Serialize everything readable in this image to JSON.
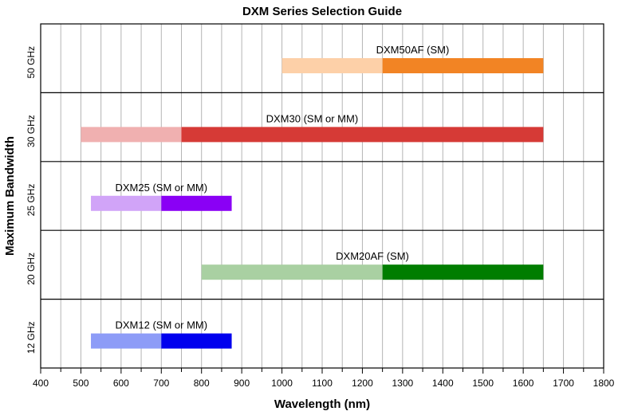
{
  "chart_data": {
    "type": "bar",
    "orientation": "horizontal-range",
    "title": "DXM Series Selection Guide",
    "xlabel": "Wavelength (nm)",
    "ylabel": "Maximum Bandwidth",
    "xlim": [
      400,
      1800
    ],
    "x_ticks": [
      400,
      500,
      600,
      700,
      800,
      900,
      1000,
      1100,
      1200,
      1300,
      1400,
      1500,
      1600,
      1700,
      1800
    ],
    "grid": true,
    "rows": [
      {
        "label": "50 GHz",
        "name": "DXM50AF (SM)",
        "light_range": [
          1000,
          1250
        ],
        "dark_range": [
          1250,
          1650
        ],
        "light_color": "#fdd0a8",
        "dark_color": "#f28424"
      },
      {
        "label": "30 GHz",
        "name": "DXM30 (SM or MM)",
        "light_range": [
          500,
          750
        ],
        "dark_range": [
          750,
          1650
        ],
        "light_color": "#f0b0b0",
        "dark_color": "#d63a36"
      },
      {
        "label": "25 GHz",
        "name": "DXM25 (SM or MM)",
        "light_range": [
          525,
          700
        ],
        "dark_range": [
          700,
          875
        ],
        "light_color": "#d1a4f8",
        "dark_color": "#8a00f5"
      },
      {
        "label": "20 GHz",
        "name": "DXM20AF (SM)",
        "light_range": [
          800,
          1250
        ],
        "dark_range": [
          1250,
          1650
        ],
        "light_color": "#a9d0a2",
        "dark_color": "#007d00"
      },
      {
        "label": "12 GHz",
        "name": "DXM12 (SM or MM)",
        "light_range": [
          525,
          700
        ],
        "dark_range": [
          700,
          875
        ],
        "light_color": "#8d9cf7",
        "dark_color": "#0000ee"
      }
    ]
  }
}
